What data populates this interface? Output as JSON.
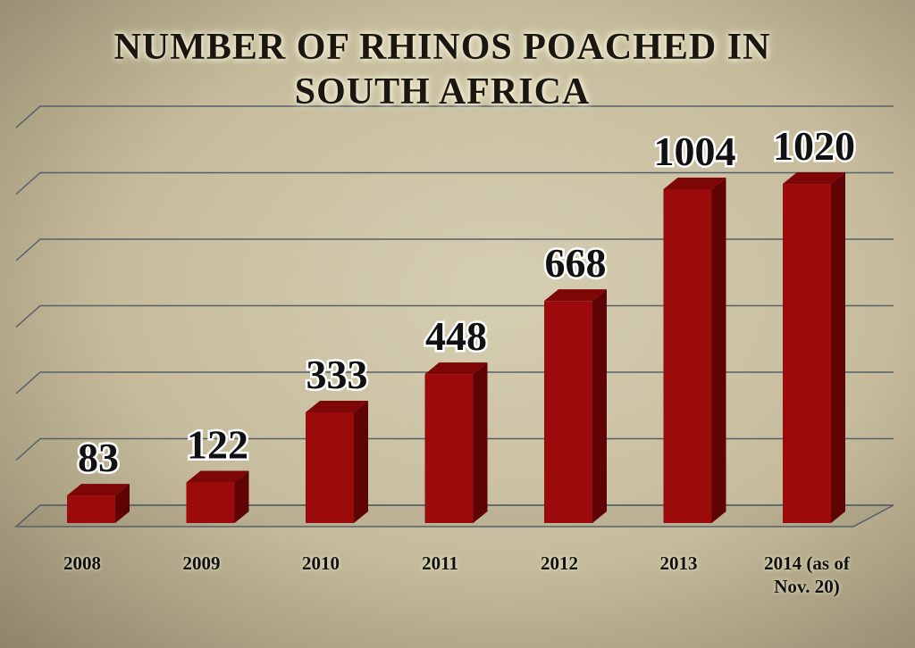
{
  "chart_data": {
    "type": "bar3d",
    "title": "NUMBER OF RHINOS POACHED IN SOUTH AFRICA",
    "categories": [
      "2008",
      "2009",
      "2010",
      "2011",
      "2012",
      "2013",
      "2014 (as of Nov. 20)"
    ],
    "values": [
      83,
      122,
      333,
      448,
      668,
      1004,
      1020
    ],
    "color": "#9c0b0b",
    "ylim": [
      0,
      1200
    ],
    "yticks": [
      0,
      200,
      400,
      600,
      800,
      1000,
      1200
    ],
    "grid": true
  }
}
